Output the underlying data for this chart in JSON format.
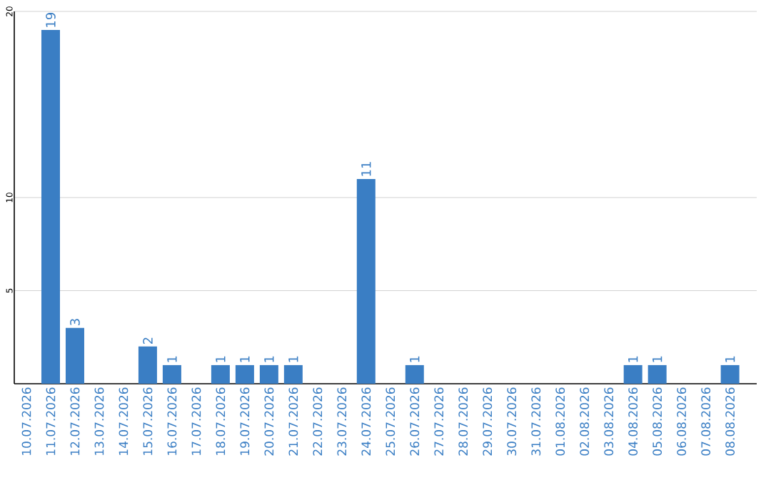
{
  "chart_data": {
    "type": "bar",
    "categories": [
      "10.07.2026",
      "11.07.2026",
      "12.07.2026",
      "13.07.2026",
      "14.07.2026",
      "15.07.2026",
      "16.07.2026",
      "17.07.2026",
      "18.07.2026",
      "19.07.2026",
      "20.07.2026",
      "21.07.2026",
      "22.07.2026",
      "23.07.2026",
      "24.07.2026",
      "25.07.2026",
      "26.07.2026",
      "27.07.2026",
      "28.07.2026",
      "29.07.2026",
      "30.07.2026",
      "31.07.2026",
      "01.08.2026",
      "02.08.2026",
      "03.08.2026",
      "04.08.2026",
      "05.08.2026",
      "06.08.2026",
      "07.08.2026",
      "08.08.2026"
    ],
    "values": [
      0,
      19,
      3,
      0,
      0,
      2,
      1,
      0,
      1,
      1,
      1,
      1,
      0,
      0,
      11,
      0,
      1,
      0,
      0,
      0,
      0,
      0,
      0,
      0,
      0,
      1,
      1,
      0,
      0,
      1
    ],
    "value_labels": [
      null,
      "19",
      "3",
      null,
      null,
      "2",
      "1",
      null,
      "1",
      "1",
      "1",
      "1",
      null,
      null,
      "11",
      null,
      "1",
      null,
      null,
      null,
      null,
      null,
      null,
      null,
      null,
      "1",
      "1",
      null,
      null,
      "1"
    ],
    "color": "#3a7ec4",
    "ylim": [
      0,
      20
    ],
    "yticks": [
      5,
      10,
      20
    ],
    "grid": "y"
  }
}
